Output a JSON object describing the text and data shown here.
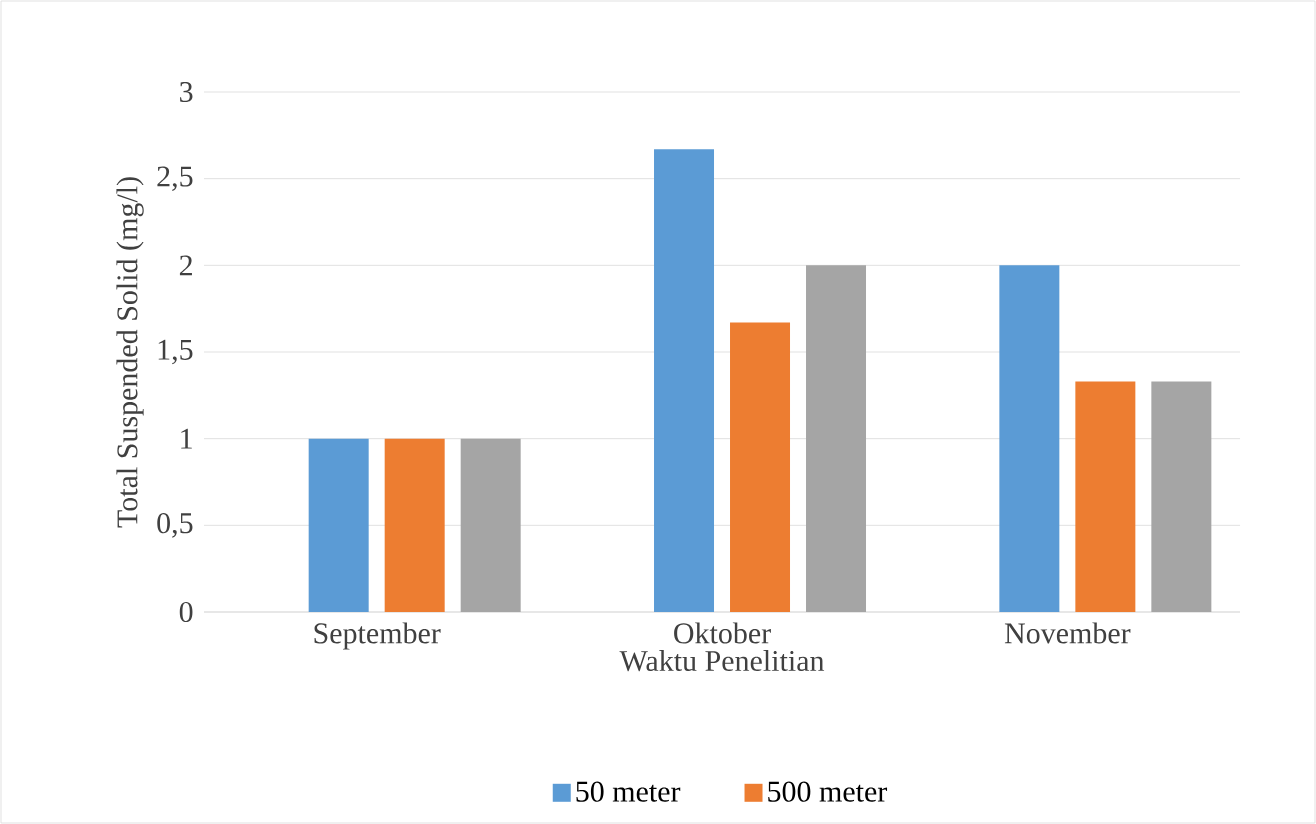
{
  "chart_data": {
    "type": "bar",
    "xlabel": "Waktu Penelitian",
    "ylabel": "Total Suspended Solid (mg/l)",
    "categories": [
      "September",
      "Oktober",
      "November"
    ],
    "series": [
      {
        "name": "50 meter",
        "color": "#5b9bd5",
        "values": [
          1,
          2.67,
          2
        ]
      },
      {
        "name": "500 meter",
        "color": "#ed7d31",
        "values": [
          1,
          1.67,
          1.33
        ]
      },
      {
        "color": "#a5a5a5",
        "values": [
          1,
          2,
          1.33
        ]
      }
    ],
    "ylim": [
      0,
      3
    ],
    "yticks": [
      0,
      {
        "value": 0.5,
        "label": "0,5"
      },
      1,
      {
        "value": 1.5,
        "label": "1,5"
      },
      2,
      {
        "value": 2.5,
        "label": "2,5"
      },
      3
    ],
    "grid": "y",
    "legend": "bottom"
  }
}
